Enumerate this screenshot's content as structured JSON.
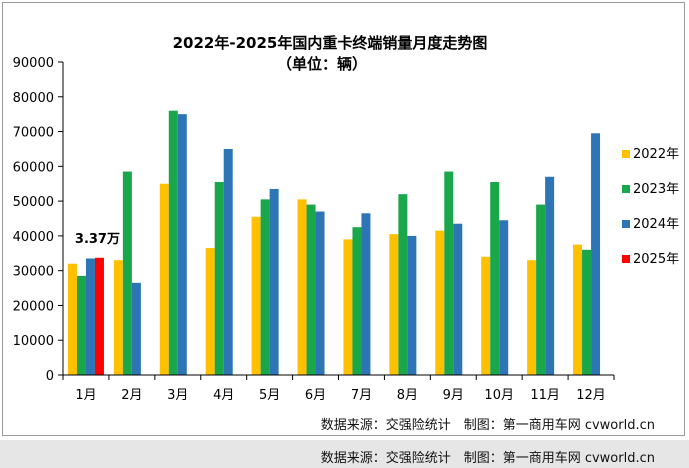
{
  "chart_data": {
    "type": "bar",
    "title": "2022年-2025年国内重卡终端销量月度走势图",
    "subtitle": "（单位：辆）",
    "categories": [
      "1月",
      "2月",
      "3月",
      "4月",
      "5月",
      "6月",
      "7月",
      "8月",
      "9月",
      "10月",
      "11月",
      "12月"
    ],
    "series": [
      {
        "name": "2022年",
        "color": "#ffc000",
        "values": [
          32000,
          33000,
          55000,
          36500,
          45500,
          50500,
          39000,
          40500,
          41500,
          34000,
          33000,
          37500
        ]
      },
      {
        "name": "2023年",
        "color": "#1aa64a",
        "values": [
          28500,
          58500,
          76000,
          55500,
          50500,
          49000,
          42500,
          52000,
          58500,
          55500,
          49000,
          36000
        ]
      },
      {
        "name": "2024年",
        "color": "#2e75b6",
        "values": [
          33500,
          26500,
          75000,
          65000,
          53500,
          47000,
          46500,
          40000,
          43500,
          44500,
          57000,
          69500
        ]
      },
      {
        "name": "2025年",
        "color": "#ff0000",
        "values": [
          33700,
          null,
          null,
          null,
          null,
          null,
          null,
          null,
          null,
          null,
          null,
          null
        ]
      }
    ],
    "yticks": [
      0,
      10000,
      20000,
      30000,
      40000,
      50000,
      60000,
      70000,
      80000,
      90000
    ],
    "ylim": [
      0,
      90000
    ],
    "annotation": {
      "text": "3.37万",
      "category": "1月",
      "series": "2025年"
    },
    "legend_position": "right",
    "grid": false
  },
  "source_note": "数据来源：交强险统计　制图：第一商用车网 cvworld.cn",
  "footer_note": "数据来源：交强险统计　制图：第一商用车网 cvworld.cn"
}
